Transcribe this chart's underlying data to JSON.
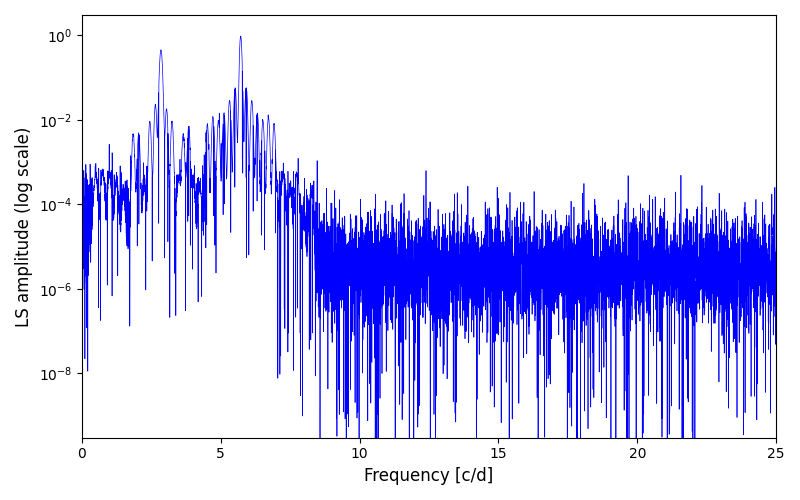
{
  "title": "",
  "xlabel": "Frequency [c/d]",
  "ylabel": "LS amplitude (log scale)",
  "xlim": [
    0,
    25
  ],
  "ylim": [
    3e-10,
    3.0
  ],
  "line_color": "blue",
  "line_width": 0.5,
  "freq_min": 0.0,
  "freq_max": 25.0,
  "n_points": 8000,
  "peak1_freq": 2.85,
  "peak1_amp": 0.45,
  "peak2_freq": 5.72,
  "peak2_amp": 0.95,
  "background_color": "#ffffff",
  "seed": 7
}
